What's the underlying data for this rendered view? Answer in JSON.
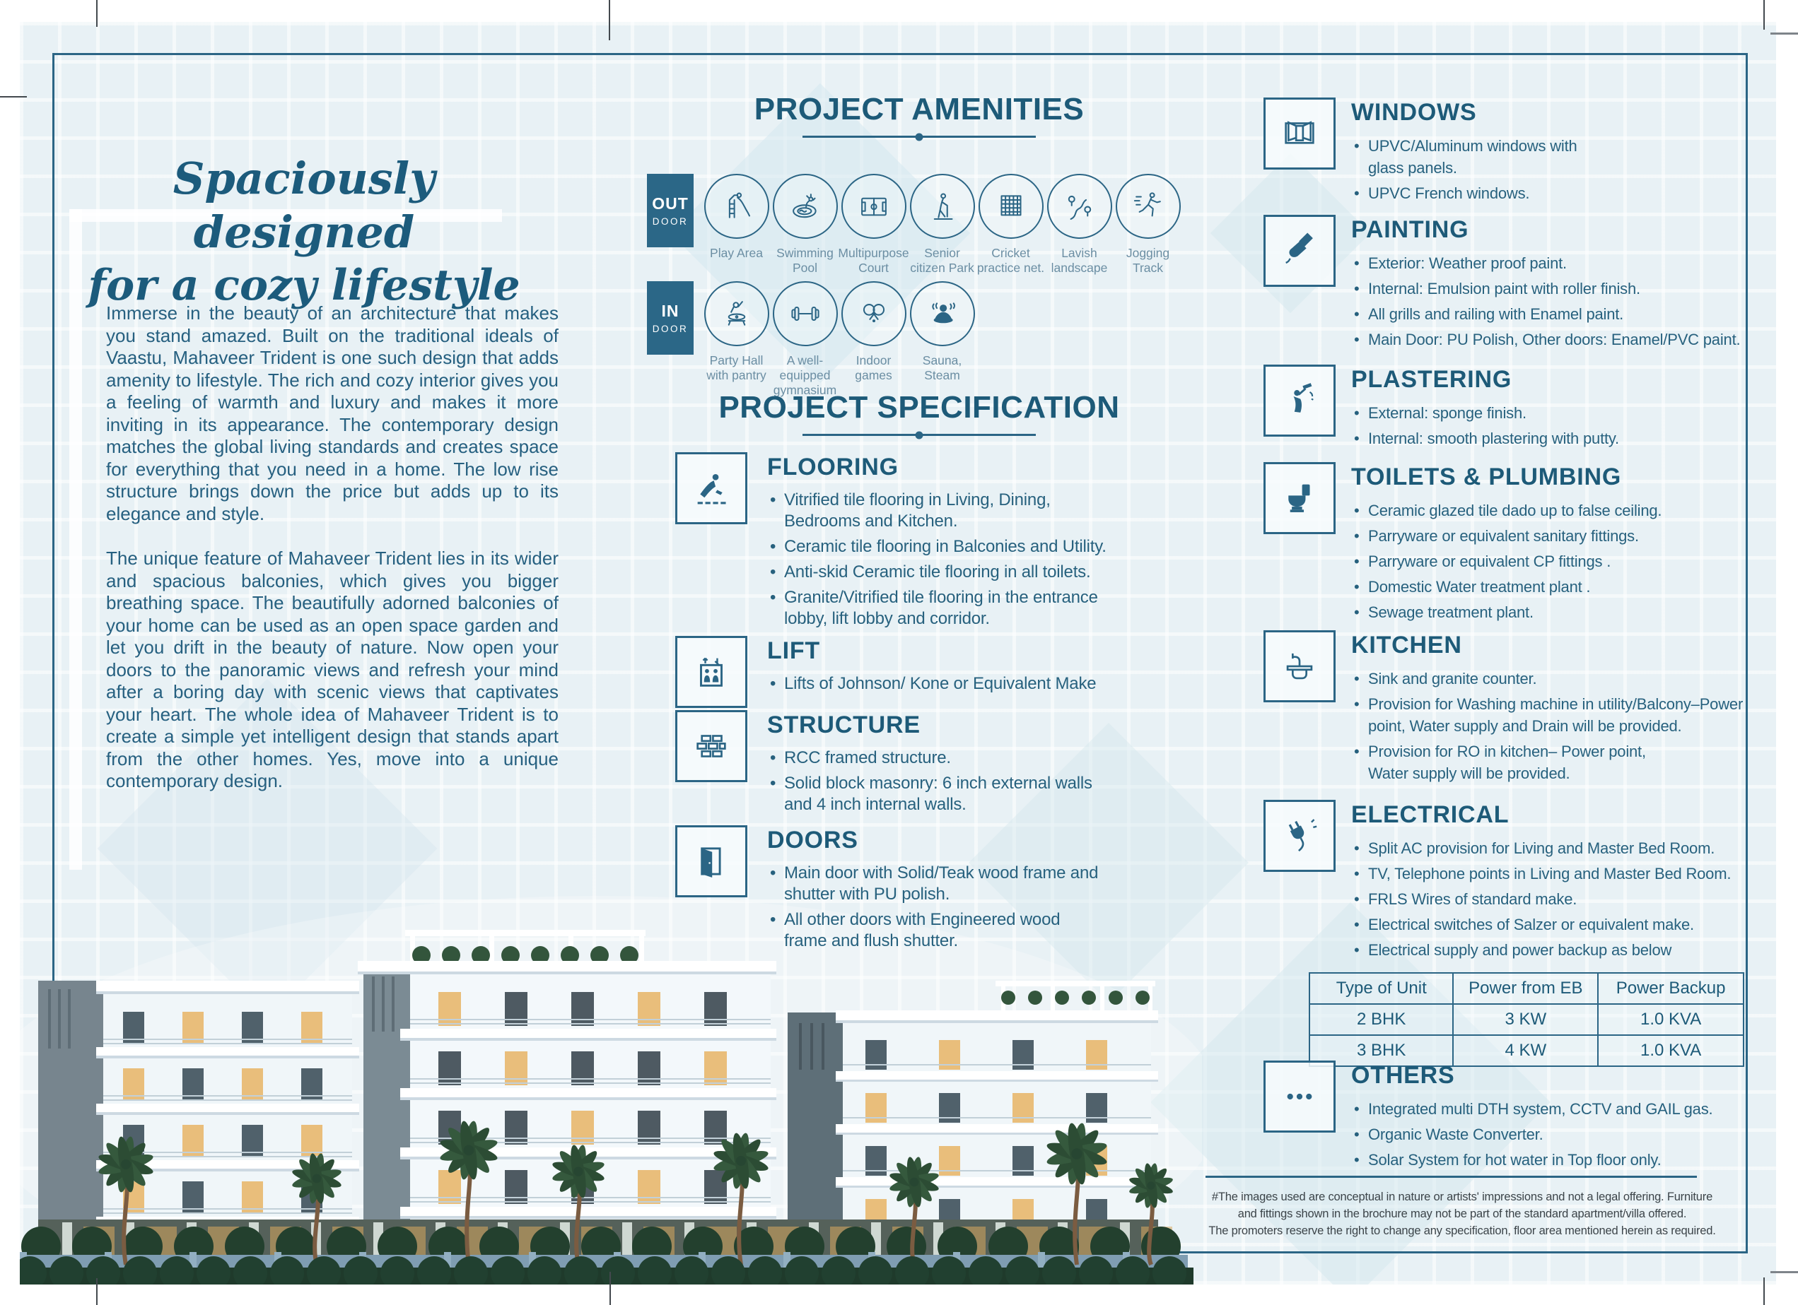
{
  "brochure": {
    "headline": {
      "line1": "Spaciously designed",
      "line2": "for a cozy lifestyle"
    },
    "intro": {
      "para1": "Immerse in the beauty of an architecture that makes you stand amazed. Built on the traditional ideals of Vaastu, Mahaveer Trident is one such design that adds amenity to lifestyle. The rich and cozy interior gives you a feeling of warmth and luxury and makes it more inviting in its appearance. The contemporary design matches the global living standards and creates space for everything that you need in a home. The low rise structure brings down the price but adds up to its elegance and style.",
      "para2": "The unique feature of Mahaveer Trident lies in its wider and spacious balconies, which gives you bigger breathing space. The beautifully adorned balconies of your home can be used as an open space garden and let you drift in the beauty of nature. Now open your doors to the panoramic views and refresh your mind after a boring day with scenic views that captivates your heart. The whole idea of Mahaveer Trident is to create a simple yet intelligent design that stands apart from the other homes. Yes, move into a unique contemporary design."
    }
  },
  "amenities": {
    "title": "PROJECT AMENITIES",
    "groups": [
      {
        "badge_line1": "OUT",
        "badge_line2": "DOOR",
        "items": [
          {
            "icon": "play-area-icon",
            "label": "Play Area"
          },
          {
            "icon": "swimming-pool-icon",
            "label": "Swimming Pool"
          },
          {
            "icon": "multipurpose-court-icon",
            "label": "Multipurpose Court"
          },
          {
            "icon": "senior-citizen-park-icon",
            "label": "Senior citizen Park"
          },
          {
            "icon": "cricket-practice-net-icon",
            "label": "Cricket practice net."
          },
          {
            "icon": "lavish-landscape-icon",
            "label": "Lavish landscape"
          },
          {
            "icon": "jogging-track-icon",
            "label": "Jogging Track"
          }
        ]
      },
      {
        "badge_line1": "IN",
        "badge_line2": "DOOR",
        "items": [
          {
            "icon": "party-hall-icon",
            "label": "Party Hall with pantry"
          },
          {
            "icon": "gymnasium-icon",
            "label": "A well-equipped gymnasium"
          },
          {
            "icon": "indoor-games-icon",
            "label": "Indoor games"
          },
          {
            "icon": "sauna-steam-icon",
            "label": "Sauna, Steam"
          }
        ]
      }
    ]
  },
  "specification": {
    "title": "PROJECT SPECIFICATION",
    "sections": [
      {
        "icon": "flooring-icon",
        "title": "FLOORING",
        "items": [
          "Vitrified tile flooring in Living, Dining,\nBedrooms and Kitchen.",
          "Ceramic tile flooring in Balconies and Utility.",
          "Anti-skid Ceramic tile flooring in all toilets.",
          "Granite/Vitrified tile flooring in the entrance\nlobby, lift lobby and corridor."
        ]
      },
      {
        "icon": "lift-icon",
        "title": "LIFT",
        "items": [
          "Lifts of Johnson/ Kone or Equivalent Make"
        ]
      },
      {
        "icon": "structure-icon",
        "title": "STRUCTURE",
        "items": [
          "RCC framed structure.",
          "Solid block masonry: 6 inch external walls\nand 4 inch internal walls."
        ]
      },
      {
        "icon": "doors-icon",
        "title": "DOORS",
        "items": [
          "Main door with Solid/Teak wood frame and\nshutter with PU polish.",
          "All other doors with Engineered wood\nframe and flush shutter."
        ]
      }
    ]
  },
  "right_column": {
    "sections": [
      {
        "icon": "windows-icon",
        "title": "WINDOWS",
        "items": [
          "UPVC/Aluminum windows with\nglass panels.",
          "UPVC French windows."
        ]
      },
      {
        "icon": "painting-icon",
        "title": "PAINTING",
        "items": [
          "Exterior: Weather proof paint.",
          "Internal: Emulsion paint with roller finish.",
          "All grills and railing with Enamel paint.",
          "Main Door: PU Polish, Other doors: Enamel/PVC paint."
        ]
      },
      {
        "icon": "plastering-icon",
        "title": "PLASTERING",
        "items": [
          "External: sponge finish.",
          "Internal: smooth plastering with putty."
        ]
      },
      {
        "icon": "toilets-plumbing-icon",
        "title": "TOILETS & PLUMBING",
        "items": [
          "Ceramic glazed tile dado up to false ceiling.",
          "Parryware or equivalent sanitary fittings.",
          "Parryware or equivalent CP fittings .",
          "Domestic Water treatment plant .",
          "Sewage treatment plant."
        ]
      },
      {
        "icon": "kitchen-icon",
        "title": "KITCHEN",
        "items": [
          "Sink and granite counter.",
          "Provision for Washing machine in utility/Balcony–Power point, Water supply and Drain will be provided.",
          "Provision for RO in kitchen– Power point,\nWater supply will be provided."
        ]
      },
      {
        "icon": "electrical-icon",
        "title": "ELECTRICAL",
        "has_table": true,
        "items": [
          "Split AC provision for Living and Master Bed Room.",
          "TV, Telephone points in Living and Master Bed Room.",
          "FRLS Wires of standard make.",
          "Electrical switches of Salzer or equivalent make.",
          "Electrical supply and power backup as below"
        ]
      },
      {
        "icon": "others-icon",
        "title": "OTHERS",
        "items": [
          "Integrated multi DTH system, CCTV and GAIL gas.",
          "Organic Waste Converter.",
          "Solar System for hot water in Top floor only."
        ]
      }
    ]
  },
  "power_table": {
    "headers": [
      "Type of Unit",
      "Power from EB",
      "Power Backup"
    ],
    "rows": [
      [
        "2 BHK",
        "3 KW",
        "1.0 KVA"
      ],
      [
        "3 BHK",
        "4 KW",
        "1.0 KVA"
      ]
    ]
  },
  "disclaimer": "#The images used are conceptual in nature or artists' impressions and not a legal offering. Furniture\nand fittings shown in the brochure may not be part of the standard apartment/villa offered.\nThe promoters reserve the right to change any specification, floor area mentioned herein as required.",
  "colors": {
    "accent": "#2b6585",
    "heading": "#1d5a78",
    "body_text": "#27617e",
    "badge_bg": "#2b6787",
    "page_bg": "#e8f1f5"
  }
}
